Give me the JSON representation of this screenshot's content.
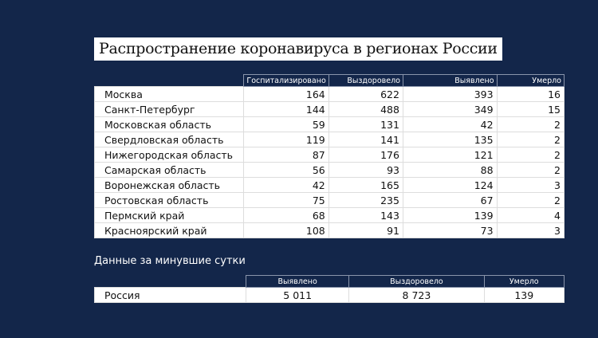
{
  "title": "Распространение коронавируса в регионах России",
  "main_table": {
    "headers": [
      "Госпитализировано",
      "Выздоровело",
      "Выявлено",
      "Умерло"
    ],
    "rows": [
      [
        "Москва",
        "164",
        "622",
        "393",
        "16"
      ],
      [
        "Санкт-Петербург",
        "144",
        "488",
        "349",
        "15"
      ],
      [
        "Московская область",
        "59",
        "131",
        "42",
        "2"
      ],
      [
        "Свердловская область",
        "119",
        "141",
        "135",
        "2"
      ],
      [
        "Нижегородская область",
        "87",
        "176",
        "121",
        "2"
      ],
      [
        "Самарская область",
        "56",
        "93",
        "88",
        "2"
      ],
      [
        "Воронежская область",
        "42",
        "165",
        "124",
        "3"
      ],
      [
        "Ростовская область",
        "75",
        "235",
        "67",
        "2"
      ],
      [
        "Пермский край",
        "68",
        "143",
        "139",
        "4"
      ],
      [
        "Красноярский край",
        "108",
        "91",
        "73",
        "3"
      ]
    ]
  },
  "daily": {
    "subtitle": "Данные за минувшие сутки",
    "headers": [
      "Выявлено",
      "Выздоровело",
      "Умерло"
    ],
    "row": [
      "Россия",
      "5 011",
      "8 723",
      "139"
    ]
  },
  "colors": {
    "background": "#13264a"
  }
}
